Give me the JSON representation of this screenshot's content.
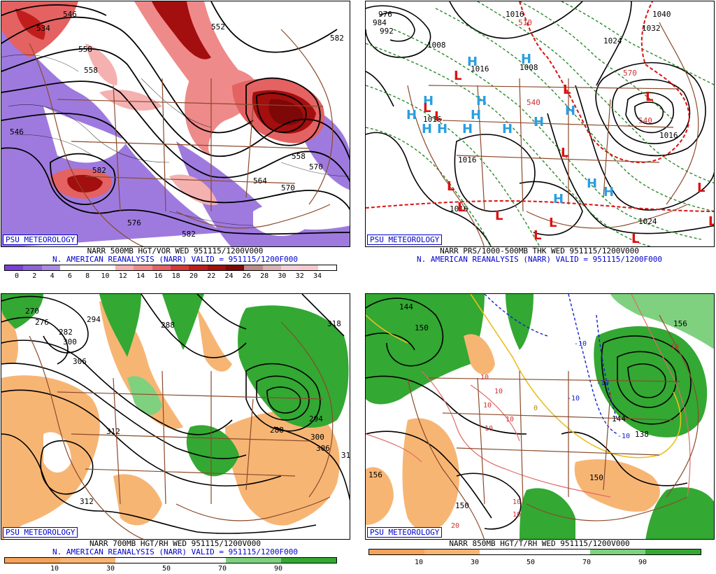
{
  "panels": [
    {
      "id": "p1",
      "title_line1": "NARR 500MB HGT/VOR WED 951115/1200V000",
      "title_line2": "N. AMERICAN REANALYSIS (NARR) VALID = 951115/1200F000",
      "badge": "PSU METEOROLOGY",
      "colorbar": {
        "colors": [
          "#7b3fd9",
          "#8d63d9",
          "#a98be4",
          "#ffffff",
          "#ffffff",
          "#ffffff",
          "#f5b0b0",
          "#ef8a8a",
          "#e46262",
          "#d83838",
          "#c21d1d",
          "#a30e0e",
          "#7e0707",
          "#bc8a8a",
          "#d9b3b3",
          "#f1cfd8",
          "#f6c9cf",
          "#ffffff"
        ],
        "ticks": [
          "0",
          "2",
          "4",
          "6",
          "8",
          "10",
          "12",
          "14",
          "16",
          "18",
          "20",
          "22",
          "24",
          "26",
          "28",
          "30",
          "32",
          "34"
        ]
      },
      "contour_labels": [
        "546",
        "534",
        "558",
        "558",
        "546",
        "582",
        "570",
        "558",
        "552",
        "564",
        "570",
        "582",
        "582",
        "576"
      ]
    },
    {
      "id": "p2",
      "title_line1": "NARR PRS/1000-500MB THK WED 951115/1200V000",
      "title_line2": "N. AMERICAN REANALYSIS (NARR) VALID = 951115/1200F000",
      "badge": "PSU METEOROLOGY",
      "contour_labels": [
        "976",
        "984",
        "992",
        "1008",
        "1016",
        "1024",
        "1032",
        "1040",
        "1016",
        "1008",
        "1016",
        "1016",
        "1024",
        "1016",
        "1016",
        "540",
        "570",
        "540",
        "510"
      ],
      "pressure_centers": [
        {
          "label": "H"
        },
        {
          "label": "H"
        },
        {
          "label": "H"
        },
        {
          "label": "H"
        },
        {
          "label": "H"
        },
        {
          "label": "H"
        },
        {
          "label": "H"
        },
        {
          "label": "H"
        },
        {
          "label": "H"
        },
        {
          "label": "H"
        },
        {
          "label": "H"
        },
        {
          "label": "H"
        },
        {
          "label": "H"
        },
        {
          "label": "H"
        },
        {
          "label": "H"
        },
        {
          "label": "L"
        },
        {
          "label": "L"
        },
        {
          "label": "L"
        },
        {
          "label": "L"
        },
        {
          "label": "L"
        },
        {
          "label": "L"
        },
        {
          "label": "L"
        },
        {
          "label": "L"
        },
        {
          "label": "L"
        },
        {
          "label": "L"
        },
        {
          "label": "L"
        },
        {
          "label": "L"
        },
        {
          "label": "L"
        },
        {
          "label": "L"
        }
      ]
    },
    {
      "id": "p3",
      "title_line1": "NARR 700MB HGT/RH WED 951115/1200V000",
      "title_line2": "N. AMERICAN REANALYSIS (NARR) VALID = 951115/1200F000",
      "badge": "PSU METEOROLOGY",
      "colorbar": {
        "colors": [
          "#f5a35a",
          "#f7b574",
          "#ffffff",
          "#ffffff",
          "#7fd17f",
          "#33a833"
        ],
        "ticks": [
          "10",
          "30",
          "50",
          "70",
          "90"
        ]
      },
      "contour_labels": [
        "270",
        "276",
        "282",
        "294",
        "288",
        "318",
        "300",
        "306",
        "312",
        "312",
        "288",
        "294",
        "300",
        "306",
        "31"
      ]
    },
    {
      "id": "p4",
      "title_line1": "NARR 850MB HGT/T/RH WED 951115/1200V000",
      "title_line2": "",
      "badge": "PSU METEOROLOGY",
      "colorbar": {
        "colors": [
          "#f5a35a",
          "#f7b574",
          "#ffffff",
          "#ffffff",
          "#7fd17f",
          "#33a833"
        ],
        "ticks": [
          "10",
          "30",
          "50",
          "70",
          "90"
        ]
      },
      "contour_labels": [
        "144",
        "150",
        "156",
        "150",
        "150",
        "144",
        "138",
        "156",
        "10",
        "10",
        "10",
        "10",
        "10",
        "10",
        "10",
        "0",
        "-10",
        "-10",
        "-10",
        "-10",
        "20",
        "10"
      ]
    }
  ]
}
